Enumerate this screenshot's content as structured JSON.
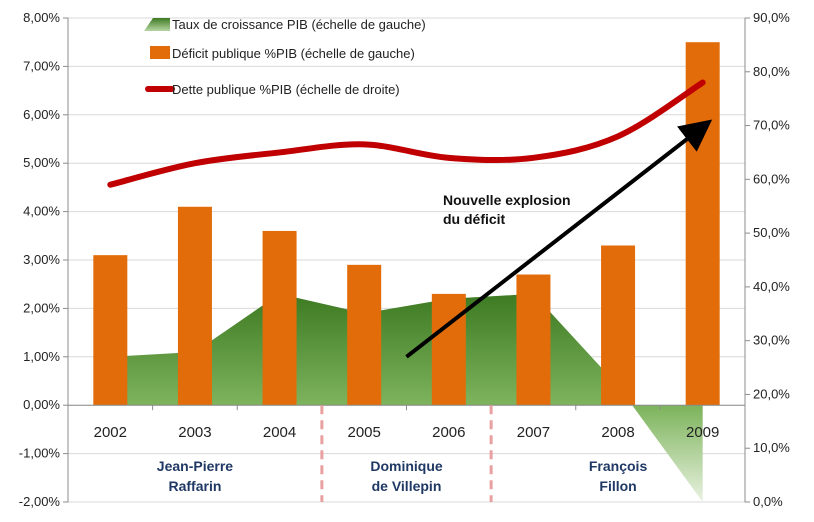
{
  "chart_data": {
    "type": "bar",
    "categories": [
      "2002",
      "2003",
      "2004",
      "2005",
      "2006",
      "2007",
      "2008",
      "2009"
    ],
    "series": [
      {
        "name": "Taux de croissance PIB (échelle de gauche)",
        "type": "area",
        "axis": "left",
        "color": "#4e8c30",
        "values": [
          1.0,
          1.1,
          2.3,
          1.9,
          2.2,
          2.3,
          0.4,
          -2.0
        ]
      },
      {
        "name": "Déficit publique %PIB (échelle de gauche)",
        "type": "bar",
        "axis": "left",
        "color": "#e36c0a",
        "values": [
          3.1,
          4.1,
          3.6,
          2.9,
          2.3,
          2.7,
          3.3,
          7.5
        ]
      },
      {
        "name": "Dette publique %PIB (échelle de droite)",
        "type": "line",
        "axis": "right",
        "color": "#c00000",
        "values": [
          59,
          63,
          65,
          66.5,
          64,
          64,
          68,
          78
        ]
      }
    ],
    "left_axis": {
      "ylim": [
        -2,
        8
      ],
      "ticks": [
        "8,00%",
        "7,00%",
        "6,00%",
        "5,00%",
        "4,00%",
        "3,00%",
        "2,00%",
        "1,00%",
        "0,00%",
        "-1,00%",
        "-2,00%"
      ]
    },
    "right_axis": {
      "ylim": [
        0,
        90
      ],
      "ticks": [
        "90,0%",
        "80,0%",
        "70,0%",
        "60,0%",
        "50,0%",
        "40,0%",
        "30,0%",
        "20,0%",
        "10,0%",
        "0,0%"
      ]
    },
    "grid": true,
    "legend_position": "top-left",
    "annotation": {
      "lines": [
        "Nouvelle explosion",
        "du déficit"
      ],
      "arrow_from": {
        "x_index": 3.5,
        "y_left": 1.0
      },
      "arrow_to": {
        "x_index": 7.0,
        "y_left": 5.75
      }
    },
    "periods": [
      {
        "lines": [
          "Jean-Pierre",
          "Raffarin"
        ],
        "start_index": 0,
        "end_index": 2
      },
      {
        "lines": [
          "Dominique",
          "de Villepin"
        ],
        "start_index": 3,
        "end_index": 4
      },
      {
        "lines": [
          "François",
          "Fillon"
        ],
        "start_index": 5,
        "end_index": 7
      }
    ],
    "colors": {
      "bar": "#e36c0a",
      "area": "#4e8c30",
      "line": "#c00000",
      "arrow": "#000000",
      "period_text": "#1f3864",
      "separator": "#e8a0a0"
    }
  }
}
